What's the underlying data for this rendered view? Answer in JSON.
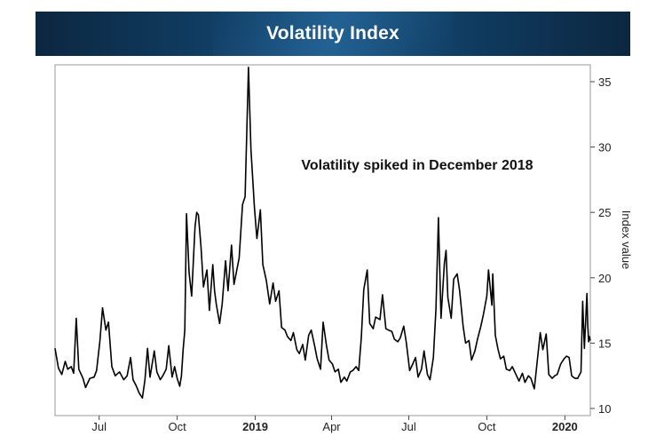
{
  "header": {
    "title": "Volatility Index"
  },
  "chart_data": {
    "type": "line",
    "title": "Volatility Index",
    "xlabel": "",
    "ylabel": "Index value",
    "ylim": [
      10,
      36
    ],
    "y_ticks": [
      10,
      15,
      20,
      25,
      30,
      35
    ],
    "x_ticks": [
      {
        "label": "Jul",
        "date": "2018-07-01",
        "bold": false
      },
      {
        "label": "Oct",
        "date": "2018-10-01",
        "bold": false
      },
      {
        "label": "2019",
        "date": "2019-01-01",
        "bold": true
      },
      {
        "label": "Apr",
        "date": "2019-04-01",
        "bold": false
      },
      {
        "label": "Jul",
        "date": "2019-07-01",
        "bold": false
      },
      {
        "label": "Oct",
        "date": "2019-10-01",
        "bold": false
      },
      {
        "label": "2020",
        "date": "2020-01-01",
        "bold": true
      }
    ],
    "xlim": [
      "2018-05-10",
      "2020-01-31"
    ],
    "grid": false,
    "y_axis_side": "right",
    "annotations": [
      {
        "text": "Volatility spiked in December 2018"
      }
    ],
    "series": [
      {
        "color": "#000000",
        "points": [
          [
            "2018-05-10",
            14.6
          ],
          [
            "2018-05-14",
            13.1
          ],
          [
            "2018-05-18",
            12.6
          ],
          [
            "2018-05-22",
            13.6
          ],
          [
            "2018-05-25",
            13.0
          ],
          [
            "2018-05-29",
            13.2
          ],
          [
            "2018-06-01",
            12.7
          ],
          [
            "2018-06-04",
            16.9
          ],
          [
            "2018-06-07",
            13.0
          ],
          [
            "2018-06-12",
            12.3
          ],
          [
            "2018-06-15",
            11.6
          ],
          [
            "2018-06-20",
            12.3
          ],
          [
            "2018-06-25",
            12.4
          ],
          [
            "2018-06-28",
            12.9
          ],
          [
            "2018-07-02",
            15.2
          ],
          [
            "2018-07-05",
            17.7
          ],
          [
            "2018-07-09",
            16.0
          ],
          [
            "2018-07-12",
            16.6
          ],
          [
            "2018-07-16",
            13.2
          ],
          [
            "2018-07-20",
            12.5
          ],
          [
            "2018-07-25",
            12.8
          ],
          [
            "2018-07-30",
            12.2
          ],
          [
            "2018-08-03",
            12.5
          ],
          [
            "2018-08-07",
            13.9
          ],
          [
            "2018-08-10",
            12.2
          ],
          [
            "2018-08-14",
            11.7
          ],
          [
            "2018-08-17",
            11.2
          ],
          [
            "2018-08-21",
            10.8
          ],
          [
            "2018-08-24",
            12.2
          ],
          [
            "2018-08-27",
            14.6
          ],
          [
            "2018-08-30",
            12.4
          ],
          [
            "2018-09-04",
            14.4
          ],
          [
            "2018-09-07",
            12.8
          ],
          [
            "2018-09-11",
            12.2
          ],
          [
            "2018-09-14",
            12.5
          ],
          [
            "2018-09-18",
            13.0
          ],
          [
            "2018-09-21",
            14.8
          ],
          [
            "2018-09-25",
            12.4
          ],
          [
            "2018-09-28",
            13.2
          ],
          [
            "2018-10-01",
            12.3
          ],
          [
            "2018-10-04",
            11.7
          ],
          [
            "2018-10-06",
            12.5
          ],
          [
            "2018-10-08",
            14.5
          ],
          [
            "2018-10-10",
            16.0
          ],
          [
            "2018-10-12",
            24.9
          ],
          [
            "2018-10-15",
            20.4
          ],
          [
            "2018-10-18",
            18.6
          ],
          [
            "2018-10-22",
            23.9
          ],
          [
            "2018-10-24",
            25.0
          ],
          [
            "2018-10-26",
            24.8
          ],
          [
            "2018-10-29",
            22.4
          ],
          [
            "2018-11-01",
            19.3
          ],
          [
            "2018-11-05",
            20.6
          ],
          [
            "2018-11-08",
            17.5
          ],
          [
            "2018-11-12",
            21.0
          ],
          [
            "2018-11-14",
            19.0
          ],
          [
            "2018-11-16",
            18.0
          ],
          [
            "2018-11-20",
            16.5
          ],
          [
            "2018-11-23",
            18.0
          ],
          [
            "2018-11-27",
            21.3
          ],
          [
            "2018-11-30",
            19.0
          ],
          [
            "2018-12-04",
            22.5
          ],
          [
            "2018-12-07",
            19.5
          ],
          [
            "2018-12-10",
            20.5
          ],
          [
            "2018-12-13",
            21.5
          ],
          [
            "2018-12-17",
            25.6
          ],
          [
            "2018-12-20",
            26.2
          ],
          [
            "2018-12-24",
            36.1
          ],
          [
            "2018-12-27",
            29.8
          ],
          [
            "2018-12-31",
            25.4
          ],
          [
            "2019-01-03",
            23.0
          ],
          [
            "2019-01-07",
            25.2
          ],
          [
            "2019-01-10",
            21.0
          ],
          [
            "2019-01-14",
            19.8
          ],
          [
            "2019-01-18",
            18.0
          ],
          [
            "2019-01-22",
            19.6
          ],
          [
            "2019-01-25",
            18.2
          ],
          [
            "2019-01-29",
            19.0
          ],
          [
            "2019-02-01",
            16.2
          ],
          [
            "2019-02-05",
            16.0
          ],
          [
            "2019-02-08",
            15.5
          ],
          [
            "2019-02-12",
            15.2
          ],
          [
            "2019-02-15",
            15.8
          ],
          [
            "2019-02-19",
            14.5
          ],
          [
            "2019-02-22",
            14.2
          ],
          [
            "2019-02-26",
            14.9
          ],
          [
            "2019-03-01",
            13.7
          ],
          [
            "2019-03-05",
            15.6
          ],
          [
            "2019-03-08",
            16.0
          ],
          [
            "2019-03-12",
            14.8
          ],
          [
            "2019-03-15",
            13.8
          ],
          [
            "2019-03-19",
            13.0
          ],
          [
            "2019-03-22",
            16.6
          ],
          [
            "2019-03-26",
            14.8
          ],
          [
            "2019-03-29",
            13.7
          ],
          [
            "2019-04-02",
            13.4
          ],
          [
            "2019-04-05",
            12.8
          ],
          [
            "2019-04-09",
            13.0
          ],
          [
            "2019-04-12",
            12.0
          ],
          [
            "2019-04-16",
            12.4
          ],
          [
            "2019-04-19",
            12.1
          ],
          [
            "2019-04-23",
            12.8
          ],
          [
            "2019-04-26",
            12.9
          ],
          [
            "2019-04-30",
            13.2
          ],
          [
            "2019-05-03",
            12.9
          ],
          [
            "2019-05-06",
            15.4
          ],
          [
            "2019-05-09",
            19.1
          ],
          [
            "2019-05-13",
            20.6
          ],
          [
            "2019-05-16",
            16.5
          ],
          [
            "2019-05-20",
            16.1
          ],
          [
            "2019-05-23",
            17.0
          ],
          [
            "2019-05-28",
            16.8
          ],
          [
            "2019-05-31",
            18.7
          ],
          [
            "2019-06-04",
            16.1
          ],
          [
            "2019-06-07",
            16.0
          ],
          [
            "2019-06-11",
            15.9
          ],
          [
            "2019-06-14",
            15.3
          ],
          [
            "2019-06-18",
            15.1
          ],
          [
            "2019-06-21",
            15.4
          ],
          [
            "2019-06-25",
            16.3
          ],
          [
            "2019-06-28",
            15.1
          ],
          [
            "2019-07-02",
            12.9
          ],
          [
            "2019-07-05",
            13.3
          ],
          [
            "2019-07-09",
            13.9
          ],
          [
            "2019-07-12",
            12.4
          ],
          [
            "2019-07-16",
            13.0
          ],
          [
            "2019-07-19",
            14.4
          ],
          [
            "2019-07-23",
            12.6
          ],
          [
            "2019-07-26",
            12.2
          ],
          [
            "2019-07-30",
            13.9
          ],
          [
            "2019-08-02",
            17.6
          ],
          [
            "2019-08-05",
            24.6
          ],
          [
            "2019-08-08",
            16.9
          ],
          [
            "2019-08-12",
            21.1
          ],
          [
            "2019-08-14",
            22.1
          ],
          [
            "2019-08-16",
            18.5
          ],
          [
            "2019-08-20",
            16.9
          ],
          [
            "2019-08-23",
            19.9
          ],
          [
            "2019-08-27",
            20.3
          ],
          [
            "2019-08-30",
            19.0
          ],
          [
            "2019-09-03",
            16.3
          ],
          [
            "2019-09-06",
            15.0
          ],
          [
            "2019-09-10",
            15.2
          ],
          [
            "2019-09-13",
            13.7
          ],
          [
            "2019-09-17",
            14.4
          ],
          [
            "2019-09-20",
            15.3
          ],
          [
            "2019-09-24",
            16.3
          ],
          [
            "2019-09-27",
            17.2
          ],
          [
            "2019-10-01",
            18.6
          ],
          [
            "2019-10-03",
            20.6
          ],
          [
            "2019-10-07",
            17.9
          ],
          [
            "2019-10-08",
            20.3
          ],
          [
            "2019-10-11",
            15.6
          ],
          [
            "2019-10-14",
            14.6
          ],
          [
            "2019-10-17",
            13.8
          ],
          [
            "2019-10-21",
            14.0
          ],
          [
            "2019-10-24",
            13.0
          ],
          [
            "2019-10-28",
            12.9
          ],
          [
            "2019-10-31",
            13.2
          ],
          [
            "2019-11-05",
            12.5
          ],
          [
            "2019-11-08",
            12.1
          ],
          [
            "2019-11-12",
            12.7
          ],
          [
            "2019-11-15",
            12.0
          ],
          [
            "2019-11-19",
            12.5
          ],
          [
            "2019-11-22",
            12.3
          ],
          [
            "2019-11-26",
            11.5
          ],
          [
            "2019-12-03",
            15.8
          ],
          [
            "2019-12-06",
            14.5
          ],
          [
            "2019-12-10",
            15.7
          ],
          [
            "2019-12-13",
            12.6
          ],
          [
            "2019-12-17",
            12.3
          ],
          [
            "2019-12-20",
            12.5
          ],
          [
            "2019-12-23",
            12.6
          ],
          [
            "2019-12-27",
            13.4
          ],
          [
            "2019-12-31",
            13.8
          ],
          [
            "2020-01-03",
            14.0
          ],
          [
            "2020-01-06",
            13.9
          ],
          [
            "2020-01-09",
            12.5
          ],
          [
            "2020-01-13",
            12.3
          ],
          [
            "2020-01-16",
            12.3
          ],
          [
            "2020-01-20",
            12.8
          ],
          [
            "2020-01-22",
            18.2
          ],
          [
            "2020-01-24",
            14.6
          ],
          [
            "2020-01-27",
            18.8
          ],
          [
            "2020-01-28",
            16.4
          ],
          [
            "2020-01-29",
            15.1
          ],
          [
            "2020-01-30",
            15.5
          ],
          [
            "2020-01-31",
            15.2
          ]
        ]
      }
    ]
  }
}
